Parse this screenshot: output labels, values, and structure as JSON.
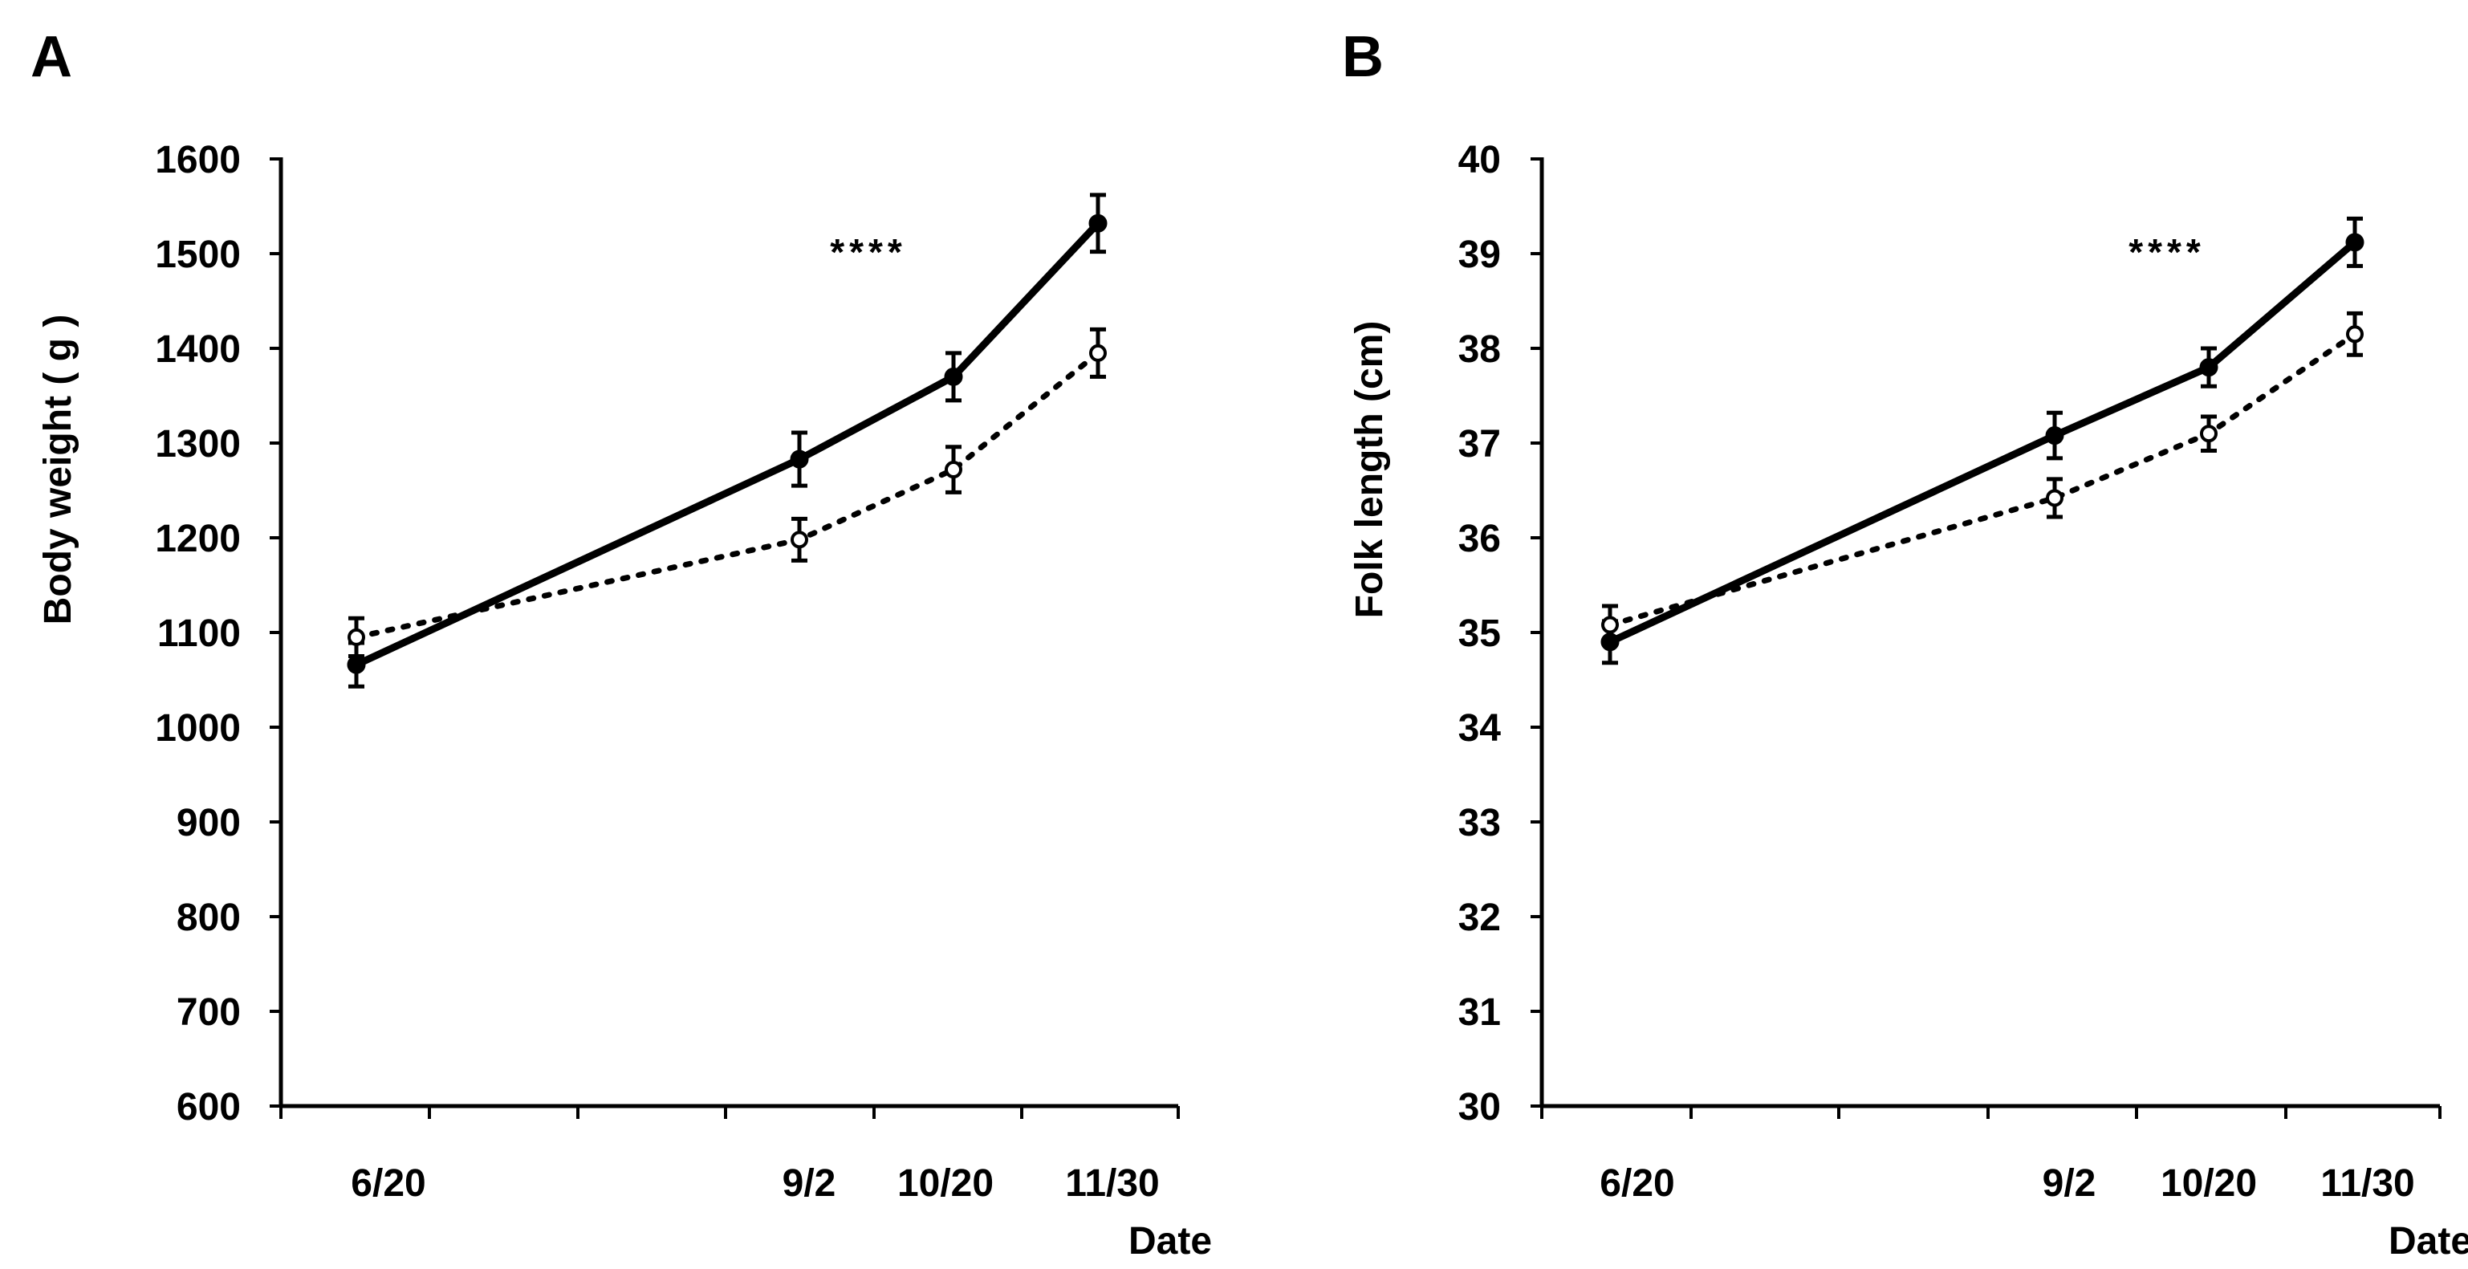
{
  "chart_data": [
    {
      "type": "line",
      "panel_label": "A",
      "ylabel": "Body weight ( g )",
      "xlabel": "Date",
      "ylim": [
        600,
        1600
      ],
      "yticks": [
        "600",
        "700",
        "800",
        "900",
        "1000",
        "1100",
        "1200",
        "1300",
        "1400",
        "1500",
        "1600"
      ],
      "xticks": [
        "6/20",
        "9/2",
        "10/20",
        "11/30"
      ],
      "x": [
        "6/20",
        "9/2",
        "10/20",
        "11/30"
      ],
      "series": [
        {
          "name": "filled",
          "marker": "filled",
          "line": "solid",
          "values": [
            1066,
            1283,
            1370,
            1532
          ],
          "errors": [
            23,
            28,
            25,
            30
          ]
        },
        {
          "name": "open",
          "marker": "open",
          "line": "dotted",
          "values": [
            1095,
            1198,
            1272,
            1395
          ],
          "errors": [
            20,
            22,
            24,
            25
          ]
        }
      ],
      "annotation": "****"
    },
    {
      "type": "line",
      "panel_label": "B",
      "ylabel": "Folk length (cm)",
      "xlabel": "Date",
      "ylim": [
        30,
        40
      ],
      "yticks": [
        "30",
        "31",
        "32",
        "33",
        "34",
        "35",
        "36",
        "37",
        "38",
        "39",
        "40"
      ],
      "xticks": [
        "6/20",
        "9/2",
        "10/20",
        "11/30"
      ],
      "x": [
        "6/20",
        "9/2",
        "10/20",
        "11/30"
      ],
      "series": [
        {
          "name": "filled",
          "marker": "filled",
          "line": "solid",
          "values": [
            34.9,
            37.08,
            37.8,
            39.12
          ],
          "errors": [
            0.22,
            0.24,
            0.2,
            0.25
          ]
        },
        {
          "name": "open",
          "marker": "open",
          "line": "dotted",
          "values": [
            35.08,
            36.42,
            37.1,
            38.15
          ],
          "errors": [
            0.2,
            0.2,
            0.18,
            0.22
          ]
        }
      ],
      "annotation": "****"
    }
  ]
}
